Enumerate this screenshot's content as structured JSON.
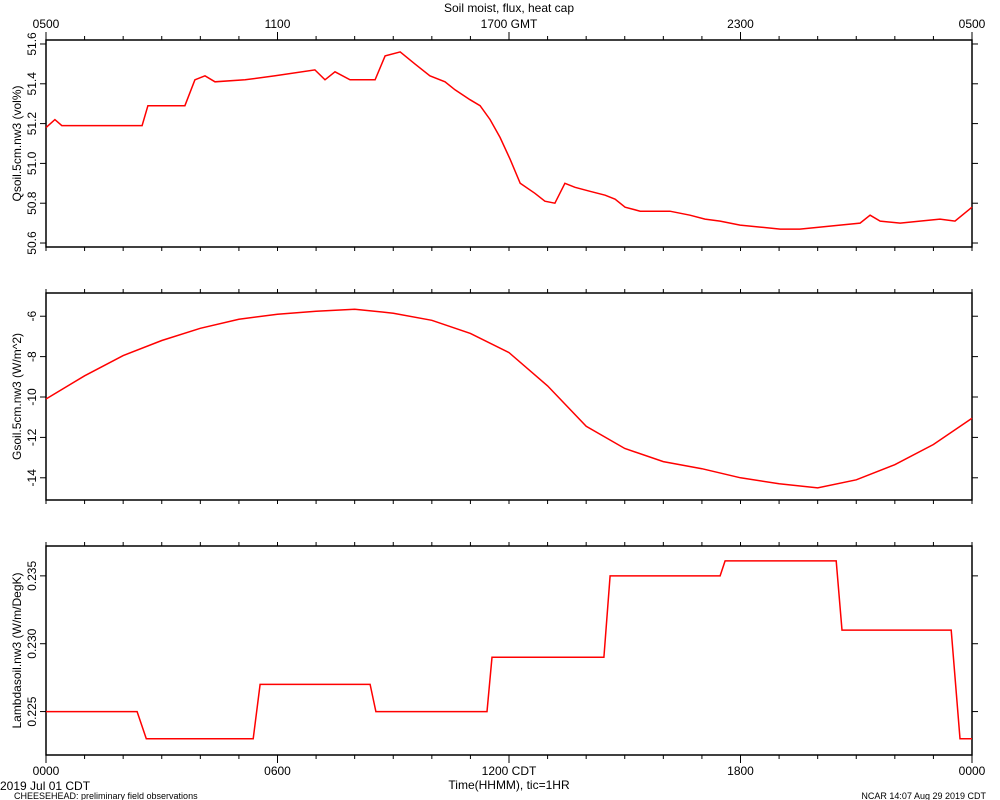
{
  "title": "Soil moist, flux, heat cap",
  "footer": {
    "date": "2019 Jul 01 CDT",
    "project": "CHEESEHEAD: preliminary field observations",
    "credit": "NCAR 14:07 Aug 29 2019 CDT"
  },
  "chart_data": [
    {
      "type": "line",
      "ylabel": "Qsoil.5cm.nw3 (vol%)",
      "color": "#ff0000",
      "x": [
        0,
        0.23,
        0.41,
        1.4,
        2.49,
        2.64,
        3.6,
        3.86,
        4.12,
        4.38,
        5.16,
        5.94,
        6.97,
        7.23,
        7.49,
        7.88,
        8.53,
        8.79,
        9.18,
        9.56,
        9.95,
        10.34,
        10.6,
        10.99,
        11.25,
        11.51,
        11.77,
        12.03,
        12.29,
        12.67,
        12.93,
        13.19,
        13.45,
        13.71,
        14.1,
        14.49,
        14.75,
        15.01,
        15.4,
        16.17,
        16.69,
        17.08,
        17.47,
        17.99,
        18.51,
        19.03,
        19.54,
        20.06,
        20.58,
        21.1,
        21.36,
        21.62,
        22.14,
        22.65,
        23.17,
        23.56,
        24
      ],
      "values": [
        51.18,
        51.22,
        51.19,
        51.19,
        51.19,
        51.29,
        51.29,
        51.42,
        51.44,
        51.41,
        51.42,
        51.44,
        51.47,
        51.42,
        51.46,
        51.42,
        51.42,
        51.54,
        51.56,
        51.5,
        51.44,
        51.41,
        51.37,
        51.32,
        51.29,
        51.22,
        51.13,
        51.02,
        50.9,
        50.85,
        50.81,
        50.8,
        50.9,
        50.88,
        50.86,
        50.84,
        50.82,
        50.78,
        50.76,
        50.76,
        50.74,
        50.72,
        50.71,
        50.69,
        50.68,
        50.67,
        50.67,
        50.68,
        50.69,
        50.7,
        50.74,
        50.71,
        50.7,
        50.71,
        50.72,
        50.71,
        50.78
      ],
      "xlim": [
        0,
        24
      ],
      "ylim": [
        50.58,
        51.62
      ],
      "yticks": [
        50.6,
        50.8,
        {
          "value": 51.0,
          "label": "51.0"
        },
        51.2,
        51.4,
        51.6
      ],
      "top_xticks": [
        {
          "value": 0,
          "label": "0500"
        },
        {
          "value": 6,
          "label": "1100"
        },
        {
          "value": 12,
          "label": "1700 GMT"
        },
        {
          "value": 18,
          "label": "2300"
        },
        {
          "value": 24,
          "label": "0500"
        }
      ],
      "x_minor_step": 1
    },
    {
      "type": "line",
      "ylabel": "Gsoil.5cm.nw3 (W/m^2)",
      "color": "#ff0000",
      "x": [
        0,
        1,
        2,
        3,
        4,
        5,
        6,
        7,
        8,
        9,
        10,
        11,
        12,
        13,
        14,
        15,
        16,
        17,
        18,
        19,
        20,
        21,
        22,
        23,
        24
      ],
      "values": [
        -10.1,
        -8.95,
        -7.95,
        -7.2,
        -6.6,
        -6.15,
        -5.9,
        -5.75,
        -5.65,
        -5.85,
        -6.2,
        -6.85,
        -7.8,
        -9.45,
        -11.45,
        -12.55,
        -13.2,
        -13.55,
        -14.0,
        -14.3,
        -14.5,
        -14.1,
        -13.35,
        -12.35,
        -11.05
      ],
      "xlim": [
        0,
        24
      ],
      "ylim": [
        -15.1,
        -4.85
      ],
      "yticks": [
        -14,
        -12,
        -10,
        -8,
        -6
      ],
      "x_minor_step": 1
    },
    {
      "type": "line",
      "ylabel": "Lambdasoil.nw3 (W/m/DegK)",
      "color": "#ff0000",
      "x": [
        0,
        2.36,
        2.6,
        5.37,
        5.55,
        8.4,
        8.55,
        11.43,
        11.56,
        14.46,
        14.62,
        17.47,
        17.6,
        20.48,
        20.63,
        23.46,
        23.69,
        24
      ],
      "values": [
        0.225,
        0.225,
        0.223,
        0.223,
        0.227,
        0.227,
        0.225,
        0.225,
        0.229,
        0.229,
        0.235,
        0.235,
        0.2361,
        0.2361,
        0.231,
        0.231,
        0.223,
        0.223
      ],
      "xlim": [
        0,
        24
      ],
      "ylim": [
        0.2218,
        0.2372
      ],
      "yticks": [
        0.225,
        {
          "value": 0.23,
          "label": "0.230"
        },
        0.235
      ],
      "xlabel": "Time(HHMM), tic=1HR",
      "xticks": [
        {
          "value": 0,
          "label": "0000"
        },
        {
          "value": 6,
          "label": "0600"
        },
        {
          "value": 12,
          "label": "1200 CDT"
        },
        {
          "value": 18,
          "label": "1800"
        },
        {
          "value": 24,
          "label": "0000"
        }
      ],
      "x_minor_step": 1
    }
  ]
}
